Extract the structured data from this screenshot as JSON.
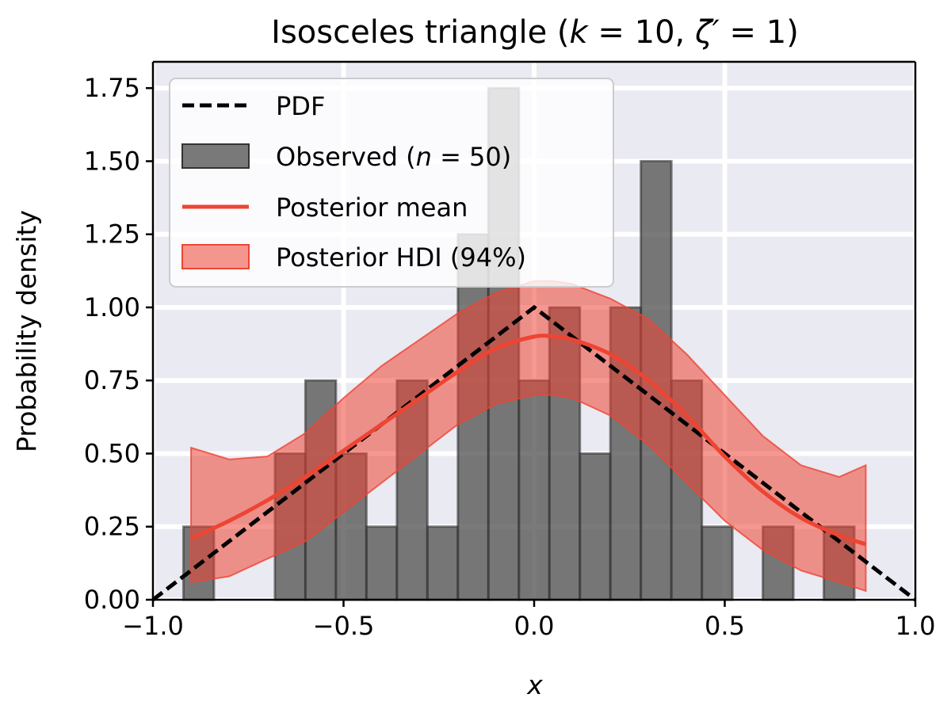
{
  "chart_data": {
    "type": "bar",
    "title": "Isosceles triangle (k = 10, ζ′ = 1)",
    "title_parts": {
      "prefix": "Isosceles triangle (",
      "k_symbol": "k",
      "k_value": " = 10, ",
      "zeta_symbol": "ζ′",
      "zeta_value": " = 1)",
      "full": "Isosceles triangle (k = 10, ζ′ = 1)"
    },
    "xlabel": "x",
    "ylabel": "Probability density",
    "xlim": [
      -1.0,
      1.0
    ],
    "ylim": [
      0.0,
      1.84
    ],
    "xticks": [
      -1.0,
      -0.5,
      0.0,
      0.5,
      1.0
    ],
    "xtick_labels": [
      "−1.0",
      "−0.5",
      "0.0",
      "0.5",
      "1.0"
    ],
    "yticks": [
      0.0,
      0.25,
      0.5,
      0.75,
      1.0,
      1.25,
      1.5,
      1.75
    ],
    "ytick_labels": [
      "0.00",
      "0.25",
      "0.50",
      "0.75",
      "1.00",
      "1.25",
      "1.50",
      "1.75"
    ],
    "grid": true,
    "legend_position": "top-left",
    "colors": {
      "background": "#eaeaf2",
      "grid": "#ffffff",
      "histogram": "#555555",
      "pdf": "#000000",
      "posterior_mean": "#ee4433",
      "hdi": "#ee4433"
    },
    "legend": [
      {
        "key": "pdf",
        "label": "PDF",
        "kind": "dashed-line"
      },
      {
        "key": "observed",
        "label": "Observed (n = 50)",
        "label_prefix": "Observed (",
        "label_symbol": "n",
        "label_suffix": " = 50)",
        "kind": "patch"
      },
      {
        "key": "posterior_mean",
        "label": "Posterior mean",
        "kind": "line"
      },
      {
        "key": "hdi",
        "label": "Posterior HDI (94%)",
        "kind": "patch"
      }
    ],
    "histogram": {
      "name": "Observed (n = 50)",
      "bin_edges": [
        -0.92,
        -0.84,
        -0.76,
        -0.68,
        -0.6,
        -0.52,
        -0.44,
        -0.36,
        -0.28,
        -0.2,
        -0.12,
        -0.04,
        0.04,
        0.12,
        0.2,
        0.28,
        0.36,
        0.44,
        0.52,
        0.6,
        0.68,
        0.76,
        0.84
      ],
      "density": [
        0.25,
        0.0,
        0.0,
        0.5,
        0.75,
        0.5,
        0.25,
        0.75,
        0.25,
        1.25,
        1.75,
        0.75,
        1.0,
        0.5,
        1.0,
        1.5,
        0.75,
        0.25,
        0.0,
        0.25,
        0.0,
        0.25
      ]
    },
    "pdf": {
      "name": "PDF",
      "x": [
        -1.0,
        0.0,
        1.0
      ],
      "y": [
        0.0,
        1.0,
        0.0
      ]
    },
    "posterior_mean": {
      "name": "Posterior mean",
      "x": [
        -0.9,
        -0.8,
        -0.7,
        -0.6,
        -0.5,
        -0.4,
        -0.3,
        -0.2,
        -0.1,
        0.0,
        0.05,
        0.1,
        0.2,
        0.3,
        0.4,
        0.5,
        0.6,
        0.7,
        0.8,
        0.87
      ],
      "y": [
        0.21,
        0.27,
        0.34,
        0.42,
        0.51,
        0.6,
        0.69,
        0.78,
        0.86,
        0.9,
        0.9,
        0.89,
        0.84,
        0.75,
        0.63,
        0.49,
        0.37,
        0.28,
        0.22,
        0.19
      ]
    },
    "hdi": {
      "name": "Posterior HDI (94%)",
      "x": [
        -0.9,
        -0.8,
        -0.7,
        -0.6,
        -0.5,
        -0.4,
        -0.3,
        -0.2,
        -0.1,
        0.0,
        0.05,
        0.1,
        0.2,
        0.3,
        0.4,
        0.5,
        0.6,
        0.7,
        0.8,
        0.87
      ],
      "lower": [
        0.06,
        0.08,
        0.14,
        0.2,
        0.3,
        0.4,
        0.5,
        0.6,
        0.67,
        0.7,
        0.7,
        0.69,
        0.63,
        0.53,
        0.4,
        0.27,
        0.17,
        0.1,
        0.06,
        0.03
      ],
      "upper": [
        0.52,
        0.48,
        0.49,
        0.57,
        0.69,
        0.8,
        0.89,
        0.98,
        1.05,
        1.09,
        1.09,
        1.08,
        1.03,
        0.96,
        0.84,
        0.7,
        0.56,
        0.46,
        0.42,
        0.46
      ]
    }
  }
}
